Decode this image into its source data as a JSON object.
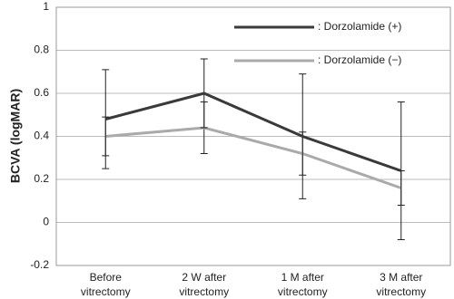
{
  "chart_data": {
    "type": "line",
    "y_label": "BCVA (logMAR)",
    "categories": [
      [
        "Before",
        "vitrectomy"
      ],
      [
        "2 W after",
        "vitrectomy"
      ],
      [
        "1 M after",
        "vitrectomy"
      ],
      [
        "3 M after",
        "vitrectomy"
      ]
    ],
    "series": [
      {
        "name": ": Dorzolamide (+)",
        "color": "#3a3a3a",
        "values": [
          0.48,
          0.6,
          0.4,
          0.24
        ],
        "errors": [
          0.23,
          0.16,
          0.29,
          0.32
        ]
      },
      {
        "name": ": Dorzolamide (−)",
        "color": "#aaaaaa",
        "values": [
          0.4,
          0.44,
          0.32,
          0.16
        ],
        "errors": [
          0.09,
          0.12,
          0.1,
          0.08
        ]
      }
    ],
    "ylim": [
      -0.2,
      1
    ],
    "yticks": [
      -0.2,
      0,
      0.2,
      0.4,
      0.6,
      0.8,
      1
    ],
    "grid": true
  }
}
